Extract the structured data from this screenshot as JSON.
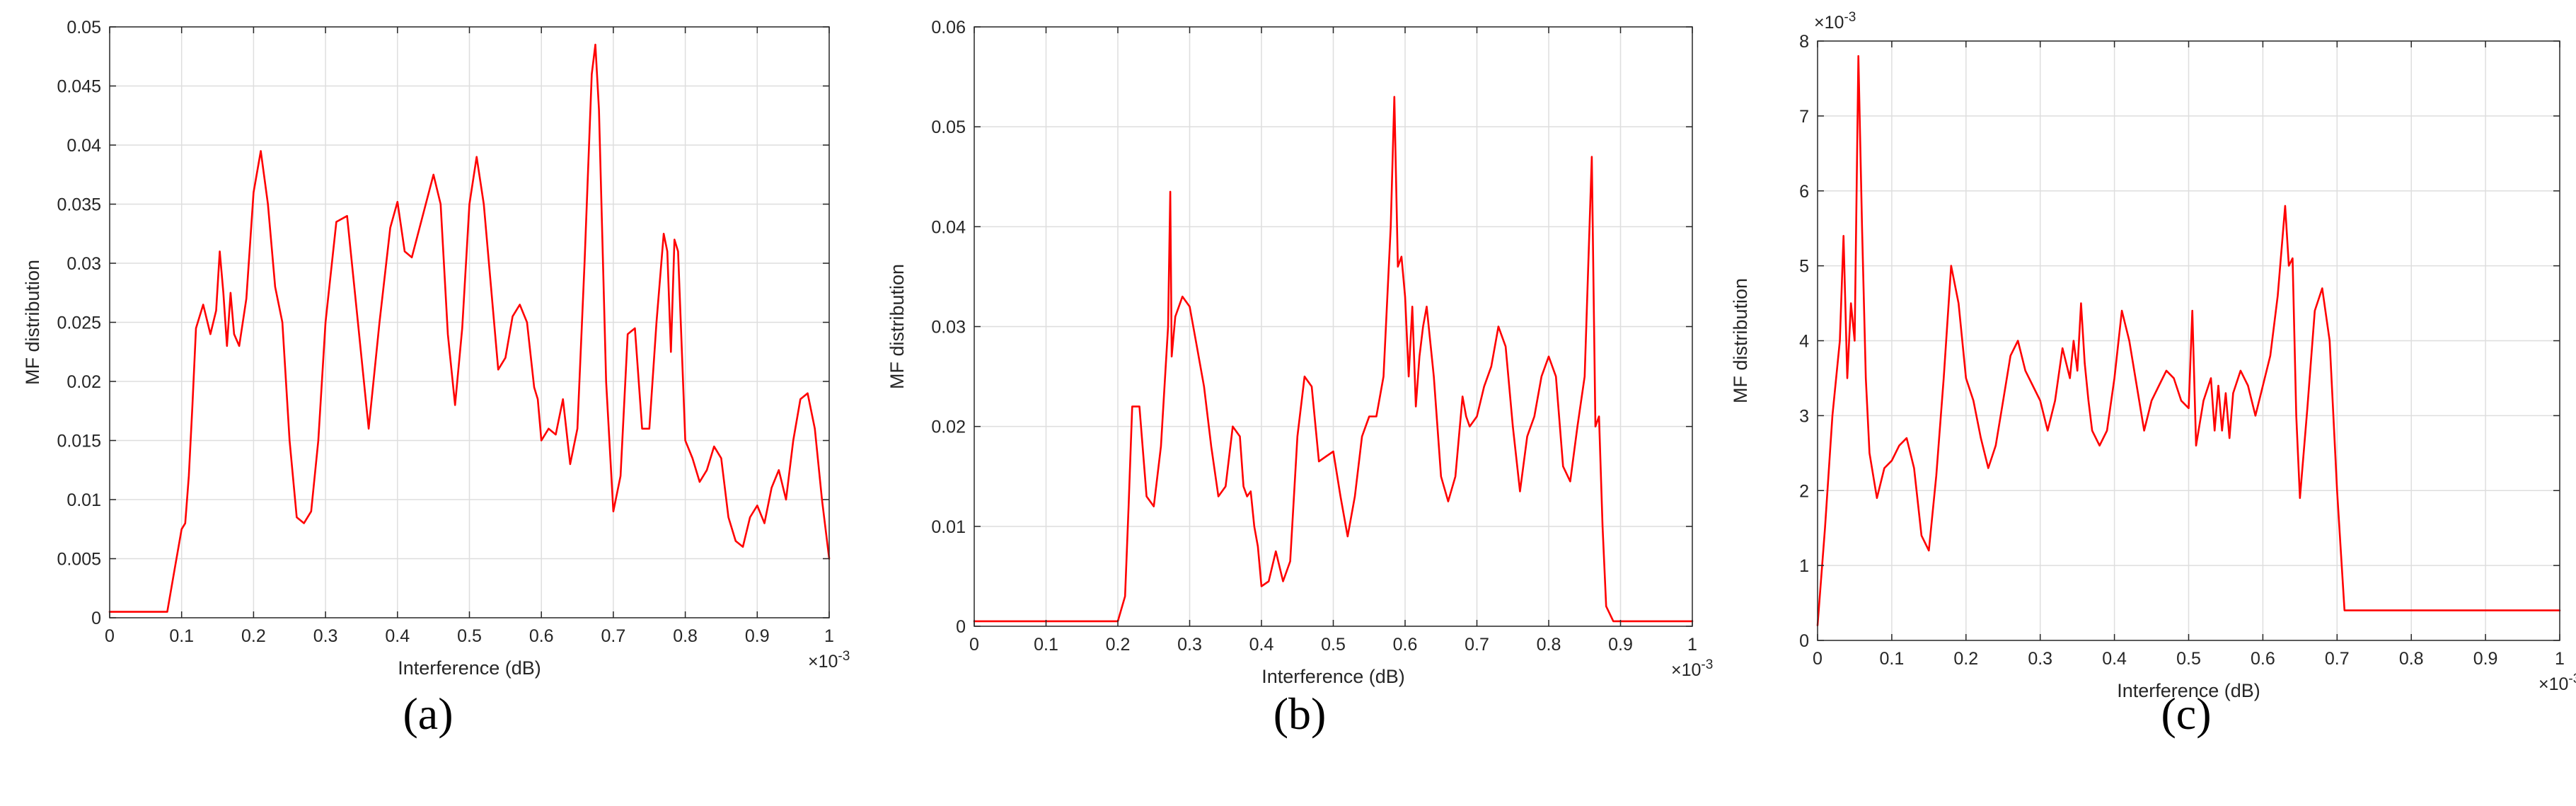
{
  "colors": {
    "line": "#ff0000",
    "grid": "#dedede",
    "axis": "#262626"
  },
  "charts": [
    {
      "caption": "(a)",
      "chart_data": {
        "type": "line",
        "xlabel": "Interference (dB)",
        "ylabel": "MF distribution",
        "x_multiplier": "×10",
        "x_exponent": "-3",
        "y_multiplier": "",
        "y_exponent": "",
        "xlim": [
          0,
          1
        ],
        "ylim": [
          0,
          0.05
        ],
        "xticks": [
          0,
          0.1,
          0.2,
          0.3,
          0.4,
          0.5,
          0.6,
          0.7,
          0.8,
          0.9,
          1
        ],
        "xtick_labels": [
          "0",
          "0.1",
          "0.2",
          "0.3",
          "0.4",
          "0.5",
          "0.6",
          "0.7",
          "0.8",
          "0.9",
          "1"
        ],
        "yticks": [
          0,
          0.005,
          0.01,
          0.015,
          0.02,
          0.025,
          0.03,
          0.035,
          0.04,
          0.045,
          0.05
        ],
        "ytick_labels": [
          "0",
          "0.005",
          "0.01",
          "0.015",
          "0.02",
          "0.025",
          "0.03",
          "0.035",
          "0.04",
          "0.045",
          "0.05"
        ],
        "grid": true,
        "series": [
          {
            "x": [
              0,
              0.08,
              0.09,
              0.1,
              0.105,
              0.11,
              0.115,
              0.12,
              0.13,
              0.14,
              0.148,
              0.153,
              0.158,
              0.163,
              0.168,
              0.173,
              0.18,
              0.19,
              0.2,
              0.21,
              0.22,
              0.23,
              0.24,
              0.25,
              0.26,
              0.27,
              0.28,
              0.29,
              0.3,
              0.315,
              0.33,
              0.345,
              0.36,
              0.375,
              0.39,
              0.4,
              0.41,
              0.42,
              0.435,
              0.45,
              0.46,
              0.47,
              0.48,
              0.49,
              0.5,
              0.51,
              0.52,
              0.53,
              0.54,
              0.55,
              0.56,
              0.57,
              0.58,
              0.59,
              0.595,
              0.6,
              0.61,
              0.62,
              0.63,
              0.64,
              0.65,
              0.66,
              0.67,
              0.675,
              0.68,
              0.69,
              0.7,
              0.71,
              0.72,
              0.73,
              0.74,
              0.75,
              0.76,
              0.77,
              0.775,
              0.78,
              0.785,
              0.79,
              0.8,
              0.81,
              0.82,
              0.83,
              0.84,
              0.85,
              0.86,
              0.87,
              0.88,
              0.89,
              0.9,
              0.91,
              0.92,
              0.93,
              0.94,
              0.95,
              0.96,
              0.97,
              0.98,
              0.99,
              1
            ],
            "y": [
              0.0005,
              0.0005,
              0.004,
              0.0075,
              0.008,
              0.012,
              0.018,
              0.0245,
              0.0265,
              0.024,
              0.026,
              0.031,
              0.0275,
              0.023,
              0.0275,
              0.024,
              0.023,
              0.027,
              0.036,
              0.0395,
              0.035,
              0.028,
              0.025,
              0.015,
              0.0085,
              0.008,
              0.009,
              0.015,
              0.025,
              0.0335,
              0.034,
              0.025,
              0.016,
              0.025,
              0.033,
              0.0352,
              0.031,
              0.0305,
              0.034,
              0.0375,
              0.035,
              0.024,
              0.018,
              0.0245,
              0.035,
              0.039,
              0.035,
              0.028,
              0.021,
              0.022,
              0.0255,
              0.0265,
              0.025,
              0.0195,
              0.0185,
              0.015,
              0.016,
              0.0155,
              0.0185,
              0.013,
              0.016,
              0.03,
              0.046,
              0.0485,
              0.043,
              0.02,
              0.009,
              0.012,
              0.024,
              0.0245,
              0.016,
              0.016,
              0.025,
              0.0325,
              0.031,
              0.0225,
              0.032,
              0.031,
              0.015,
              0.0135,
              0.0115,
              0.0125,
              0.0145,
              0.0135,
              0.0085,
              0.0065,
              0.006,
              0.0085,
              0.0095,
              0.008,
              0.011,
              0.0125,
              0.01,
              0.015,
              0.0185,
              0.019,
              0.016,
              0.01,
              0.005
            ]
          }
        ]
      }
    },
    {
      "caption": "(b)",
      "chart_data": {
        "type": "line",
        "xlabel": "Interference (dB)",
        "ylabel": "MF distribution",
        "x_multiplier": "×10",
        "x_exponent": "-3",
        "y_multiplier": "",
        "y_exponent": "",
        "xlim": [
          0,
          1
        ],
        "ylim": [
          0,
          0.06
        ],
        "xticks": [
          0,
          0.1,
          0.2,
          0.3,
          0.4,
          0.5,
          0.6,
          0.7,
          0.8,
          0.9,
          1
        ],
        "xtick_labels": [
          "0",
          "0.1",
          "0.2",
          "0.3",
          "0.4",
          "0.5",
          "0.6",
          "0.7",
          "0.8",
          "0.9",
          "1"
        ],
        "yticks": [
          0,
          0.01,
          0.02,
          0.03,
          0.04,
          0.05,
          0.06
        ],
        "ytick_labels": [
          "0",
          "0.01",
          "0.02",
          "0.03",
          "0.04",
          "0.05",
          "0.06"
        ],
        "grid": true,
        "series": [
          {
            "x": [
              0,
              0.2,
              0.21,
              0.215,
              0.22,
              0.23,
              0.24,
              0.25,
              0.26,
              0.27,
              0.273,
              0.275,
              0.28,
              0.29,
              0.3,
              0.31,
              0.32,
              0.33,
              0.34,
              0.35,
              0.36,
              0.37,
              0.375,
              0.38,
              0.385,
              0.39,
              0.395,
              0.4,
              0.41,
              0.42,
              0.43,
              0.44,
              0.45,
              0.46,
              0.47,
              0.48,
              0.49,
              0.5,
              0.51,
              0.52,
              0.53,
              0.54,
              0.55,
              0.56,
              0.57,
              0.58,
              0.585,
              0.59,
              0.595,
              0.6,
              0.605,
              0.61,
              0.615,
              0.62,
              0.625,
              0.63,
              0.64,
              0.65,
              0.66,
              0.67,
              0.68,
              0.685,
              0.69,
              0.7,
              0.71,
              0.72,
              0.73,
              0.74,
              0.75,
              0.76,
              0.77,
              0.78,
              0.79,
              0.8,
              0.81,
              0.82,
              0.83,
              0.84,
              0.85,
              0.86,
              0.865,
              0.87,
              0.875,
              0.88,
              0.89,
              0.9,
              1
            ],
            "y": [
              0.0005,
              0.0005,
              0.003,
              0.012,
              0.022,
              0.022,
              0.013,
              0.012,
              0.018,
              0.03,
              0.0435,
              0.027,
              0.031,
              0.033,
              0.032,
              0.028,
              0.024,
              0.018,
              0.013,
              0.014,
              0.02,
              0.019,
              0.014,
              0.013,
              0.0135,
              0.01,
              0.008,
              0.004,
              0.0045,
              0.0075,
              0.0045,
              0.0065,
              0.019,
              0.025,
              0.024,
              0.0165,
              0.017,
              0.0175,
              0.013,
              0.009,
              0.013,
              0.019,
              0.021,
              0.021,
              0.025,
              0.04,
              0.053,
              0.036,
              0.037,
              0.033,
              0.025,
              0.032,
              0.022,
              0.027,
              0.03,
              0.032,
              0.025,
              0.015,
              0.0125,
              0.015,
              0.023,
              0.021,
              0.02,
              0.021,
              0.024,
              0.026,
              0.03,
              0.028,
              0.02,
              0.0135,
              0.019,
              0.021,
              0.025,
              0.027,
              0.025,
              0.016,
              0.0145,
              0.02,
              0.025,
              0.047,
              0.02,
              0.021,
              0.01,
              0.002,
              0.0005,
              0.0005,
              0.0005
            ]
          }
        ]
      }
    },
    {
      "caption": "(c)",
      "chart_data": {
        "type": "line",
        "xlabel": "Interference (dB)",
        "ylabel": "MF distribution",
        "x_multiplier": "×10",
        "x_exponent": "-3",
        "y_multiplier": "×10",
        "y_exponent": "-3",
        "xlim": [
          0,
          1
        ],
        "ylim": [
          0,
          8
        ],
        "xticks": [
          0,
          0.1,
          0.2,
          0.3,
          0.4,
          0.5,
          0.6,
          0.7,
          0.8,
          0.9,
          1
        ],
        "xtick_labels": [
          "0",
          "0.1",
          "0.2",
          "0.3",
          "0.4",
          "0.5",
          "0.6",
          "0.7",
          "0.8",
          "0.9",
          "1"
        ],
        "yticks": [
          0,
          1,
          2,
          3,
          4,
          5,
          6,
          7,
          8
        ],
        "ytick_labels": [
          "0",
          "1",
          "2",
          "3",
          "4",
          "5",
          "6",
          "7",
          "8"
        ],
        "grid": true,
        "series": [
          {
            "x": [
              0,
              0.01,
              0.02,
              0.03,
              0.035,
              0.04,
              0.045,
              0.05,
              0.055,
              0.06,
              0.065,
              0.07,
              0.08,
              0.09,
              0.1,
              0.11,
              0.12,
              0.13,
              0.14,
              0.15,
              0.16,
              0.17,
              0.18,
              0.19,
              0.2,
              0.21,
              0.22,
              0.23,
              0.24,
              0.25,
              0.26,
              0.27,
              0.28,
              0.29,
              0.3,
              0.31,
              0.32,
              0.33,
              0.34,
              0.345,
              0.35,
              0.355,
              0.36,
              0.365,
              0.37,
              0.38,
              0.39,
              0.4,
              0.41,
              0.42,
              0.43,
              0.44,
              0.45,
              0.46,
              0.47,
              0.48,
              0.49,
              0.5,
              0.505,
              0.51,
              0.52,
              0.53,
              0.535,
              0.54,
              0.545,
              0.55,
              0.555,
              0.56,
              0.57,
              0.58,
              0.59,
              0.6,
              0.61,
              0.62,
              0.63,
              0.635,
              0.64,
              0.645,
              0.65,
              0.66,
              0.67,
              0.68,
              0.69,
              0.7,
              0.71,
              1
            ],
            "y": [
              0.2,
              1.5,
              3,
              4,
              5.4,
              3.5,
              4.5,
              4,
              7.8,
              5.5,
              3.5,
              2.5,
              1.9,
              2.3,
              2.4,
              2.6,
              2.7,
              2.3,
              1.4,
              1.2,
              2.2,
              3.5,
              5,
              4.5,
              3.5,
              3.2,
              2.7,
              2.3,
              2.6,
              3.2,
              3.8,
              4,
              3.6,
              3.4,
              3.2,
              2.8,
              3.2,
              3.9,
              3.5,
              4,
              3.6,
              4.5,
              3.7,
              3.2,
              2.8,
              2.6,
              2.8,
              3.5,
              4.4,
              4,
              3.4,
              2.8,
              3.2,
              3.4,
              3.6,
              3.5,
              3.2,
              3.1,
              4.4,
              2.6,
              3.2,
              3.5,
              2.8,
              3.4,
              2.8,
              3.3,
              2.7,
              3.3,
              3.6,
              3.4,
              3,
              3.4,
              3.8,
              4.6,
              5.8,
              5,
              5.1,
              3,
              1.9,
              3.1,
              4.4,
              4.7,
              4,
              2,
              0.4,
              0.4
            ]
          }
        ]
      }
    }
  ]
}
